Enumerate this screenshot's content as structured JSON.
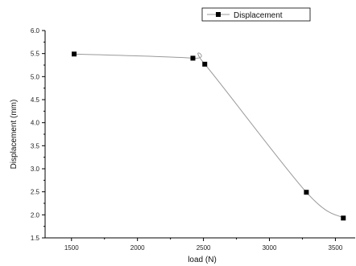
{
  "chart_data": {
    "type": "line",
    "title": "",
    "xlabel": "load (N)",
    "ylabel": "Displacement (mm)",
    "xlim": [
      1300,
      3650
    ],
    "ylim": [
      1.5,
      6.0
    ],
    "x_ticks": [
      "1500",
      "2000",
      "2500",
      "3000",
      "3500"
    ],
    "y_ticks": [
      "1.5",
      "2.0",
      "2.5",
      "3.0",
      "3.5",
      "4.0",
      "4.5",
      "5.0",
      "5.5",
      "6.0"
    ],
    "legend": {
      "position": "top-right"
    },
    "series": [
      {
        "name": "Displacement",
        "marker": "square",
        "color": "#000000",
        "line_color": "#9a9a9a",
        "smoothed": true,
        "x": [
          1520,
          2420,
          2510,
          3280,
          3560
        ],
        "y": [
          5.49,
          5.4,
          5.27,
          2.49,
          1.93
        ]
      }
    ]
  }
}
